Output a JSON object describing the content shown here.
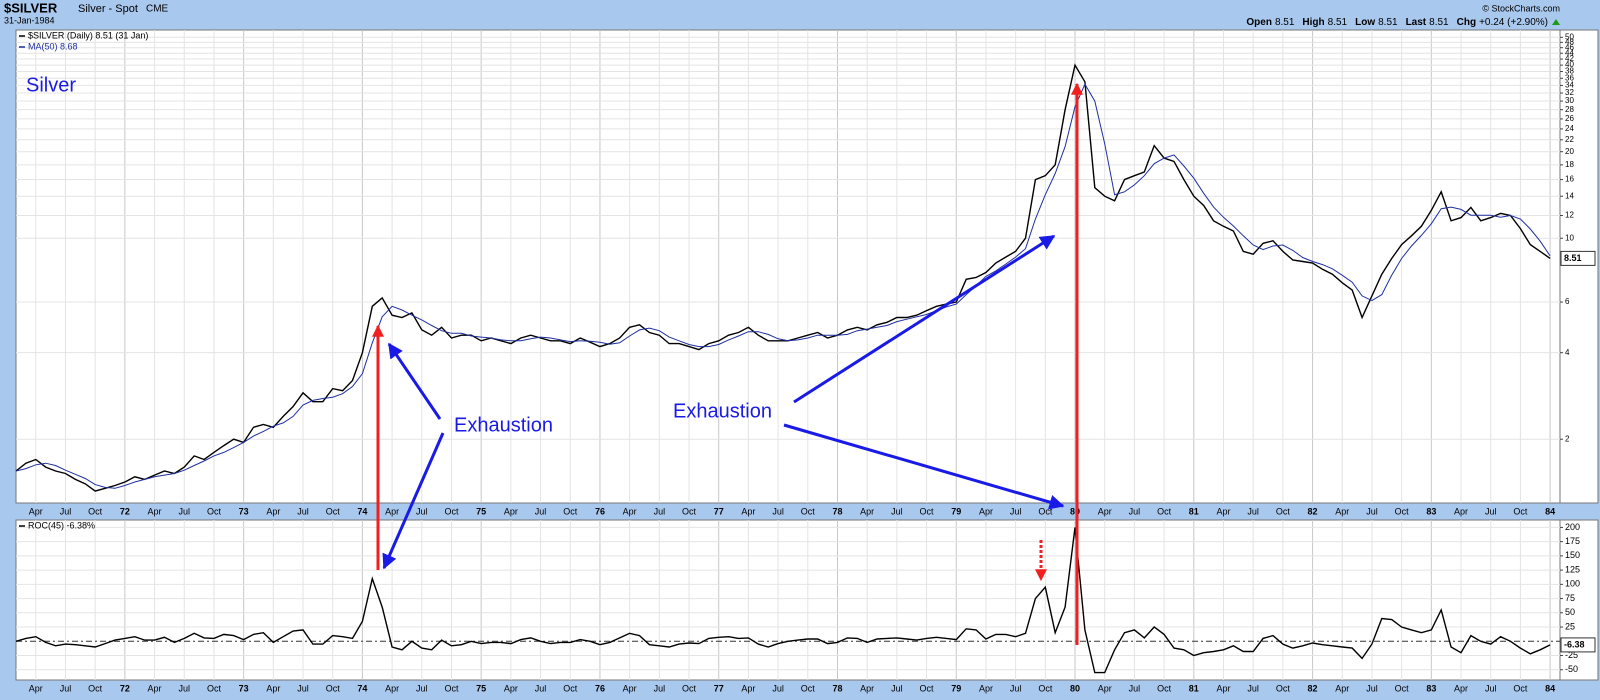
{
  "header": {
    "symbol": "$SILVER",
    "name": "Silver - Spot",
    "exchange": "CME",
    "date": "31-Jan-1984",
    "quote": [
      {
        "label": "Open",
        "value": 8.51
      },
      {
        "label": "High",
        "value": 8.51
      },
      {
        "label": "Low",
        "value": 8.51
      },
      {
        "label": "Last",
        "value": 8.51
      },
      {
        "label": "Chg",
        "value": "+0.24 (+2.90%)"
      }
    ],
    "copyright": "© StockCharts.com"
  },
  "chart_data": [
    {
      "type": "line",
      "title": "Silver",
      "annotations": [
        "Exhaustion",
        "Exhaustion"
      ],
      "x": [
        "1971-02",
        "1971-03",
        "1971-04",
        "1971-05",
        "1971-06",
        "1971-07",
        "1971-08",
        "1971-09",
        "1971-10",
        "1971-11",
        "1971-12",
        "1972-01",
        "1972-02",
        "1972-03",
        "1972-04",
        "1972-05",
        "1972-06",
        "1972-07",
        "1972-08",
        "1972-09",
        "1972-10",
        "1972-11",
        "1972-12",
        "1973-01",
        "1973-02",
        "1973-03",
        "1973-04",
        "1973-05",
        "1973-06",
        "1973-07",
        "1973-08",
        "1973-09",
        "1973-10",
        "1973-11",
        "1973-12",
        "1974-01",
        "1974-02",
        "1974-03",
        "1974-04",
        "1974-05",
        "1974-06",
        "1974-07",
        "1974-08",
        "1974-09",
        "1974-10",
        "1974-11",
        "1974-12",
        "1975-01",
        "1975-02",
        "1975-03",
        "1975-04",
        "1975-05",
        "1975-06",
        "1975-07",
        "1975-08",
        "1975-09",
        "1975-10",
        "1975-11",
        "1975-12",
        "1976-01",
        "1976-02",
        "1976-03",
        "1976-04",
        "1976-05",
        "1976-06",
        "1976-07",
        "1976-08",
        "1976-09",
        "1976-10",
        "1976-11",
        "1976-12",
        "1977-01",
        "1977-02",
        "1977-03",
        "1977-04",
        "1977-05",
        "1977-06",
        "1977-07",
        "1977-08",
        "1977-09",
        "1977-10",
        "1977-11",
        "1977-12",
        "1978-01",
        "1978-02",
        "1978-03",
        "1978-04",
        "1978-05",
        "1978-06",
        "1978-07",
        "1978-08",
        "1978-09",
        "1978-10",
        "1978-11",
        "1978-12",
        "1979-01",
        "1979-02",
        "1979-03",
        "1979-04",
        "1979-05",
        "1979-06",
        "1979-07",
        "1979-08",
        "1979-09",
        "1979-10",
        "1979-11",
        "1979-12",
        "1980-01",
        "1980-02",
        "1980-03",
        "1980-04",
        "1980-05",
        "1980-06",
        "1980-07",
        "1980-08",
        "1980-09",
        "1980-10",
        "1980-11",
        "1980-12",
        "1981-01",
        "1981-02",
        "1981-03",
        "1981-04",
        "1981-05",
        "1981-06",
        "1981-07",
        "1981-08",
        "1981-09",
        "1981-10",
        "1981-11",
        "1981-12",
        "1982-01",
        "1982-02",
        "1982-03",
        "1982-04",
        "1982-05",
        "1982-06",
        "1982-07",
        "1982-08",
        "1982-09",
        "1982-10",
        "1982-11",
        "1982-12",
        "1983-01",
        "1983-02",
        "1983-03",
        "1983-04",
        "1983-05",
        "1983-06",
        "1983-07",
        "1983-08",
        "1983-09",
        "1983-10",
        "1983-11",
        "1983-12",
        "1984-01"
      ],
      "series": [
        {
          "name": "$SILVER (Daily) 8.51 (31 Jan)",
          "color": "#000000",
          "values": [
            1.55,
            1.65,
            1.7,
            1.6,
            1.55,
            1.52,
            1.45,
            1.4,
            1.32,
            1.35,
            1.38,
            1.42,
            1.48,
            1.45,
            1.5,
            1.55,
            1.52,
            1.6,
            1.75,
            1.7,
            1.8,
            1.9,
            2.0,
            1.95,
            2.2,
            2.25,
            2.2,
            2.4,
            2.6,
            2.9,
            2.7,
            2.7,
            3.0,
            2.95,
            3.2,
            4.0,
            5.8,
            6.2,
            5.4,
            5.3,
            5.5,
            4.8,
            4.6,
            4.9,
            4.5,
            4.6,
            4.6,
            4.4,
            4.5,
            4.4,
            4.3,
            4.5,
            4.6,
            4.5,
            4.4,
            4.4,
            4.3,
            4.5,
            4.35,
            4.2,
            4.3,
            4.5,
            4.9,
            5.0,
            4.7,
            4.6,
            4.3,
            4.3,
            4.2,
            4.1,
            4.3,
            4.4,
            4.6,
            4.7,
            4.9,
            4.6,
            4.4,
            4.4,
            4.4,
            4.5,
            4.6,
            4.7,
            4.5,
            4.6,
            4.8,
            4.9,
            4.8,
            5.0,
            5.1,
            5.3,
            5.3,
            5.4,
            5.6,
            5.8,
            5.9,
            6.0,
            7.2,
            7.3,
            7.6,
            8.2,
            8.6,
            9.0,
            10.0,
            16.0,
            16.5,
            18.0,
            28.0,
            40.0,
            35.0,
            15.0,
            14.0,
            13.5,
            16.0,
            16.5,
            17.0,
            21.0,
            19.0,
            18.5,
            16.0,
            14.0,
            13.0,
            11.5,
            11.0,
            10.6,
            9.0,
            8.8,
            9.6,
            9.8,
            9.0,
            8.4,
            8.3,
            8.2,
            7.8,
            7.5,
            7.0,
            6.6,
            5.3,
            6.3,
            7.5,
            8.5,
            9.5,
            10.2,
            11.0,
            12.5,
            14.5,
            11.5,
            11.8,
            12.8,
            11.5,
            11.8,
            12.2,
            12.0,
            10.8,
            9.5,
            9.0,
            8.51
          ]
        },
        {
          "name": "MA(50) 8.68",
          "color": "#1f2f9f",
          "values": [
            1.55,
            1.58,
            1.63,
            1.65,
            1.62,
            1.56,
            1.51,
            1.46,
            1.39,
            1.36,
            1.35,
            1.38,
            1.42,
            1.45,
            1.48,
            1.5,
            1.52,
            1.56,
            1.62,
            1.68,
            1.75,
            1.8,
            1.87,
            1.95,
            2.05,
            2.13,
            2.22,
            2.28,
            2.4,
            2.63,
            2.73,
            2.77,
            2.8,
            2.88,
            3.05,
            3.38,
            4.33,
            5.33,
            5.8,
            5.63,
            5.4,
            5.2,
            4.97,
            4.77,
            4.67,
            4.67,
            4.57,
            4.53,
            4.5,
            4.43,
            4.4,
            4.4,
            4.47,
            4.53,
            4.5,
            4.43,
            4.37,
            4.4,
            4.38,
            4.35,
            4.28,
            4.33,
            4.57,
            4.8,
            4.87,
            4.77,
            4.53,
            4.4,
            4.27,
            4.2,
            4.2,
            4.27,
            4.43,
            4.57,
            4.73,
            4.73,
            4.63,
            4.47,
            4.4,
            4.43,
            4.5,
            4.6,
            4.6,
            4.6,
            4.63,
            4.77,
            4.83,
            4.9,
            4.97,
            5.13,
            5.23,
            5.33,
            5.43,
            5.6,
            5.77,
            5.9,
            6.37,
            6.83,
            7.37,
            7.7,
            8.13,
            8.6,
            9.2,
            11.67,
            14.17,
            16.8,
            20.83,
            28.67,
            34.33,
            30.0,
            21.33,
            14.17,
            14.5,
            15.33,
            16.5,
            18.17,
            19.0,
            19.5,
            17.83,
            16.17,
            14.33,
            12.83,
            11.83,
            11.03,
            10.2,
            9.47,
            9.13,
            9.4,
            9.47,
            9.07,
            8.57,
            8.3,
            8.1,
            7.83,
            7.43,
            7.03,
            6.3,
            6.07,
            6.37,
            7.43,
            8.5,
            9.4,
            10.23,
            11.23,
            12.67,
            12.83,
            12.6,
            12.03,
            12.03,
            12.03,
            11.83,
            12.0,
            11.67,
            10.77,
            9.77,
            8.68
          ]
        }
      ],
      "xlim": [
        "1971-02",
        "1984-02"
      ],
      "xticks": [
        {
          "value": "1971-04",
          "label": "Apr"
        },
        {
          "value": "1971-07",
          "label": "Jul"
        },
        {
          "value": "1971-10",
          "label": "Oct"
        },
        {
          "value": "1972-01",
          "label": "72"
        },
        {
          "value": "1972-04",
          "label": "Apr"
        },
        {
          "value": "1972-07",
          "label": "Jul"
        },
        {
          "value": "1972-10",
          "label": "Oct"
        },
        {
          "value": "1973-01",
          "label": "73"
        },
        {
          "value": "1973-04",
          "label": "Apr"
        },
        {
          "value": "1973-07",
          "label": "Jul"
        },
        {
          "value": "1973-10",
          "label": "Oct"
        },
        {
          "value": "1974-01",
          "label": "74"
        },
        {
          "value": "1974-04",
          "label": "Apr"
        },
        {
          "value": "1974-07",
          "label": "Jul"
        },
        {
          "value": "1974-10",
          "label": "Oct"
        },
        {
          "value": "1975-01",
          "label": "75"
        },
        {
          "value": "1975-04",
          "label": "Apr"
        },
        {
          "value": "1975-07",
          "label": "Jul"
        },
        {
          "value": "1975-10",
          "label": "Oct"
        },
        {
          "value": "1976-01",
          "label": "76"
        },
        {
          "value": "1976-04",
          "label": "Apr"
        },
        {
          "value": "1976-07",
          "label": "Jul"
        },
        {
          "value": "1976-10",
          "label": "Oct"
        },
        {
          "value": "1977-01",
          "label": "77"
        },
        {
          "value": "1977-04",
          "label": "Apr"
        },
        {
          "value": "1977-07",
          "label": "Jul"
        },
        {
          "value": "1977-10",
          "label": "Oct"
        },
        {
          "value": "1978-01",
          "label": "78"
        },
        {
          "value": "1978-04",
          "label": "Apr"
        },
        {
          "value": "1978-07",
          "label": "Jul"
        },
        {
          "value": "1978-10",
          "label": "Oct"
        },
        {
          "value": "1979-01",
          "label": "79"
        },
        {
          "value": "1979-04",
          "label": "Apr"
        },
        {
          "value": "1979-07",
          "label": "Jul"
        },
        {
          "value": "1979-10",
          "label": "Oct"
        },
        {
          "value": "1980-01",
          "label": "80"
        },
        {
          "value": "1980-04",
          "label": "Apr"
        },
        {
          "value": "1980-07",
          "label": "Jul"
        },
        {
          "value": "1980-10",
          "label": "Oct"
        },
        {
          "value": "1981-01",
          "label": "81"
        },
        {
          "value": "1981-04",
          "label": "Apr"
        },
        {
          "value": "1981-07",
          "label": "Jul"
        },
        {
          "value": "1981-10",
          "label": "Oct"
        },
        {
          "value": "1982-01",
          "label": "82"
        },
        {
          "value": "1982-04",
          "label": "Apr"
        },
        {
          "value": "1982-07",
          "label": "Jul"
        },
        {
          "value": "1982-10",
          "label": "Oct"
        },
        {
          "value": "1983-01",
          "label": "83"
        },
        {
          "value": "1983-04",
          "label": "Apr"
        },
        {
          "value": "1983-07",
          "label": "Jul"
        },
        {
          "value": "1983-10",
          "label": "Oct"
        },
        {
          "value": "1984-01",
          "label": "84"
        }
      ],
      "ylim": [
        1.2,
        53
      ],
      "yticks": [
        2,
        4,
        6,
        10,
        12,
        14,
        16,
        18,
        20,
        22,
        24,
        26,
        28,
        30,
        32,
        34,
        36,
        38,
        40,
        42,
        44,
        46,
        48,
        50
      ],
      "log_scale": true,
      "grid": true
    },
    {
      "type": "line",
      "x": [
        "1971-02",
        "1971-03",
        "1971-04",
        "1971-05",
        "1971-06",
        "1971-07",
        "1971-08",
        "1971-09",
        "1971-10",
        "1971-11",
        "1971-12",
        "1972-01",
        "1972-02",
        "1972-03",
        "1972-04",
        "1972-05",
        "1972-06",
        "1972-07",
        "1972-08",
        "1972-09",
        "1972-10",
        "1972-11",
        "1972-12",
        "1973-01",
        "1973-02",
        "1973-03",
        "1973-04",
        "1973-05",
        "1973-06",
        "1973-07",
        "1973-08",
        "1973-09",
        "1973-10",
        "1973-11",
        "1973-12",
        "1974-01",
        "1974-02",
        "1974-03",
        "1974-04",
        "1974-05",
        "1974-06",
        "1974-07",
        "1974-08",
        "1974-09",
        "1974-10",
        "1974-11",
        "1974-12",
        "1975-01",
        "1975-02",
        "1975-03",
        "1975-04",
        "1975-05",
        "1975-06",
        "1975-07",
        "1975-08",
        "1975-09",
        "1975-10",
        "1975-11",
        "1975-12",
        "1976-01",
        "1976-02",
        "1976-03",
        "1976-04",
        "1976-05",
        "1976-06",
        "1976-07",
        "1976-08",
        "1976-09",
        "1976-10",
        "1976-11",
        "1976-12",
        "1977-01",
        "1977-02",
        "1977-03",
        "1977-04",
        "1977-05",
        "1977-06",
        "1977-07",
        "1977-08",
        "1977-09",
        "1977-10",
        "1977-11",
        "1977-12",
        "1978-01",
        "1978-02",
        "1978-03",
        "1978-04",
        "1978-05",
        "1978-06",
        "1978-07",
        "1978-08",
        "1978-09",
        "1978-10",
        "1978-11",
        "1978-12",
        "1979-01",
        "1979-02",
        "1979-03",
        "1979-04",
        "1979-05",
        "1979-06",
        "1979-07",
        "1979-08",
        "1979-09",
        "1979-10",
        "1979-11",
        "1979-12",
        "1980-01",
        "1980-02",
        "1980-03",
        "1980-04",
        "1980-05",
        "1980-06",
        "1980-07",
        "1980-08",
        "1980-09",
        "1980-10",
        "1980-11",
        "1980-12",
        "1981-01",
        "1981-02",
        "1981-03",
        "1981-04",
        "1981-05",
        "1981-06",
        "1981-07",
        "1981-08",
        "1981-09",
        "1981-10",
        "1981-11",
        "1981-12",
        "1982-01",
        "1982-02",
        "1982-03",
        "1982-04",
        "1982-05",
        "1982-06",
        "1982-07",
        "1982-08",
        "1982-09",
        "1982-10",
        "1982-11",
        "1982-12",
        "1983-01",
        "1983-02",
        "1983-03",
        "1983-04",
        "1983-05",
        "1983-06",
        "1983-07",
        "1983-08",
        "1983-09",
        "1983-10",
        "1983-11",
        "1983-12",
        "1984-01"
      ],
      "series": [
        {
          "name": "ROC(45) -6.38%",
          "color": "#000000",
          "values": [
            0,
            5,
            8,
            -2,
            -8,
            -5,
            -6,
            -8,
            -10,
            -4,
            2,
            5,
            8,
            2,
            2,
            7,
            -2,
            5,
            14,
            6,
            5,
            12,
            10,
            3,
            12,
            15,
            -2,
            8,
            18,
            20,
            -5,
            -5,
            10,
            8,
            5,
            35,
            110,
            60,
            -10,
            -15,
            0,
            -12,
            -15,
            2,
            -8,
            -6,
            0,
            -4,
            -2,
            -2,
            -4,
            3,
            6,
            0,
            -4,
            -2,
            -2,
            3,
            0,
            -6,
            -2,
            6,
            14,
            10,
            -6,
            -8,
            -10,
            -5,
            -3,
            -4,
            5,
            7,
            8,
            5,
            6,
            -5,
            -10,
            -4,
            0,
            2,
            4,
            4,
            -4,
            -2,
            6,
            5,
            -2,
            4,
            5,
            6,
            4,
            2,
            5,
            7,
            5,
            3,
            22,
            20,
            4,
            12,
            12,
            8,
            14,
            75,
            95,
            15,
            60,
            200,
            20,
            -55,
            -55,
            -15,
            15,
            20,
            6,
            25,
            12,
            -12,
            -15,
            -25,
            -20,
            -18,
            -15,
            -8,
            -18,
            -18,
            5,
            10,
            -5,
            -12,
            -8,
            -3,
            -6,
            -8,
            -10,
            -12,
            -30,
            -5,
            40,
            38,
            25,
            20,
            15,
            20,
            55,
            -10,
            -20,
            10,
            0,
            -5,
            8,
            0,
            -12,
            -22,
            -15,
            -6.38
          ]
        }
      ],
      "xlim": [
        "1971-02",
        "1984-02"
      ],
      "ylim": [
        -68,
        213
      ],
      "yticks": [
        -50,
        -25,
        25,
        50,
        75,
        100,
        125,
        150,
        175,
        200
      ],
      "reference_line": 0,
      "grid": true
    }
  ]
}
